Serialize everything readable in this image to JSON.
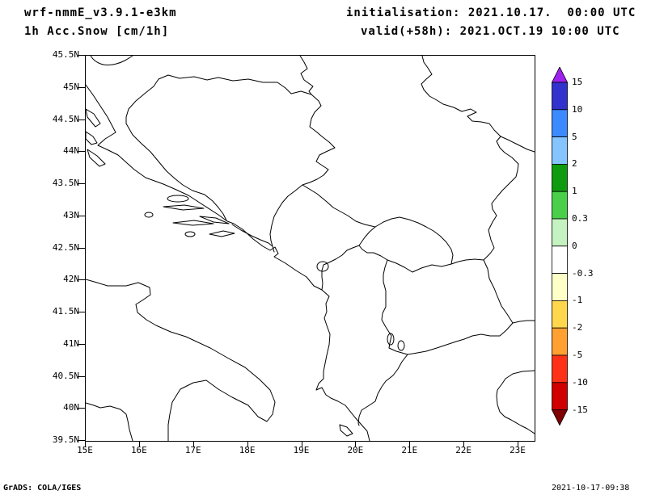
{
  "header": {
    "model": "wrf-nmmE_v3.9.1-e3km",
    "product": "1h Acc.Snow [cm/1h]",
    "initialisation": "initialisation: 2021.10.17.  00:00 UTC",
    "valid": "valid(+58h): 2021.OCT.19 10:00 UTC"
  },
  "footer": {
    "left": "GrADS: COLA/IGES",
    "right": "2021-10-17-09:38"
  },
  "chart_data": {
    "type": "map",
    "title": "1h Acc.Snow [cm/1h]",
    "model": "wrf-nmmE_v3.9.1-e3km",
    "init_time": "2021.10.17. 00:00 UTC",
    "valid_time": "2021.OCT.19 10:00 UTC (+58h)",
    "region": "Adriatic Sea / Balkans (southern Italy, Croatia, Bosnia, Serbia, Montenegro, Albania, Macedonia, northern Greece)",
    "lon_range_deg_e": [
      15,
      23.3
    ],
    "lat_range_deg_n": [
      39.5,
      45.5
    ],
    "lat_ticks": [
      "45.5N",
      "45N",
      "44.5N",
      "44N",
      "43.5N",
      "43N",
      "42.5N",
      "42N",
      "41.5N",
      "41N",
      "40.5N",
      "40N",
      "39.5N"
    ],
    "lon_ticks": [
      "15E",
      "16E",
      "17E",
      "18E",
      "19E",
      "20E",
      "21E",
      "22E",
      "23E"
    ],
    "field": "blank - no accumulated snow shaded anywhere in the domain",
    "colorbar": {
      "unit": "cm/1h",
      "labels": [
        "15",
        "10",
        "5",
        "2",
        "1",
        "0.3",
        "0",
        "-0.3",
        "-1",
        "-2",
        "-5",
        "-10",
        "-15"
      ],
      "colors": [
        "#a020f0",
        "#3232cd",
        "#3c8aff",
        "#85c4ff",
        "#0f9b0f",
        "#49cf49",
        "#c4f2c0",
        "#ffffff",
        "#ffffc8",
        "#ffd74d",
        "#ffa030",
        "#ff3217",
        "#d00000",
        "#800000"
      ]
    }
  }
}
